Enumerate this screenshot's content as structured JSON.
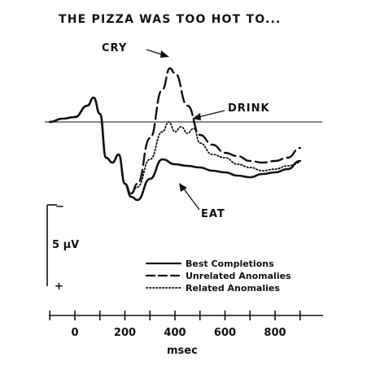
{
  "chart_data": {
    "type": "line",
    "title": "THE PIZZA WAS TOO HOT TO...",
    "xlabel": "msec",
    "ylabel": "",
    "x_ticks": [
      0,
      200,
      400,
      600,
      800
    ],
    "xlim": [
      -100,
      900
    ],
    "ylim": [
      -6,
      4
    ],
    "y_inverted": true,
    "scale_bar": {
      "label": "5 μV",
      "minus_sign": "−",
      "plus_sign": "+",
      "value_uv": 5
    },
    "legend_position": "bottom-right",
    "series": [
      {
        "name": "Best Completions",
        "style": "solid",
        "annotation": "EAT",
        "x": [
          -100,
          -50,
          0,
          50,
          75,
          100,
          125,
          150,
          175,
          200,
          225,
          250,
          300,
          350,
          400,
          450,
          500,
          550,
          600,
          650,
          700,
          750,
          800,
          850,
          900
        ],
        "y": [
          0,
          0.2,
          0.3,
          1.0,
          1.5,
          0.5,
          -2.2,
          -2.5,
          -2.0,
          -3.8,
          -4.6,
          -4.8,
          -3.5,
          -2.3,
          -2.6,
          -2.7,
          -2.8,
          -3.0,
          -3.1,
          -3.3,
          -3.4,
          -3.2,
          -3.1,
          -2.9,
          -2.4
        ]
      },
      {
        "name": "Unrelated Anomalies",
        "style": "dashed",
        "annotation": "CRY",
        "x": [
          -100,
          -50,
          0,
          50,
          75,
          100,
          125,
          150,
          175,
          200,
          225,
          250,
          300,
          350,
          380,
          400,
          450,
          500,
          550,
          600,
          650,
          700,
          750,
          800,
          850,
          900
        ],
        "y": [
          0,
          0.2,
          0.3,
          1.0,
          1.5,
          0.5,
          -2.2,
          -2.5,
          -2.0,
          -3.8,
          -4.4,
          -3.8,
          -1.0,
          2.0,
          3.3,
          3.0,
          1.0,
          -0.8,
          -1.4,
          -1.9,
          -2.1,
          -2.4,
          -2.5,
          -2.4,
          -2.2,
          -1.6
        ]
      },
      {
        "name": "Related Anomalies",
        "style": "dotted",
        "annotation": "DRINK",
        "x": [
          -100,
          -50,
          0,
          50,
          75,
          100,
          125,
          150,
          175,
          200,
          225,
          250,
          300,
          350,
          375,
          400,
          425,
          450,
          475,
          500,
          550,
          600,
          650,
          700,
          750,
          800,
          850,
          900
        ],
        "y": [
          0,
          0.2,
          0.3,
          1.0,
          1.5,
          0.5,
          -2.2,
          -2.5,
          -2.0,
          -3.8,
          -4.4,
          -4.0,
          -2.3,
          -0.6,
          0.0,
          -0.6,
          -0.3,
          -0.7,
          -0.4,
          -1.3,
          -2.0,
          -2.2,
          -2.6,
          -2.8,
          -3.0,
          -2.9,
          -2.7,
          -2.5
        ]
      }
    ]
  }
}
